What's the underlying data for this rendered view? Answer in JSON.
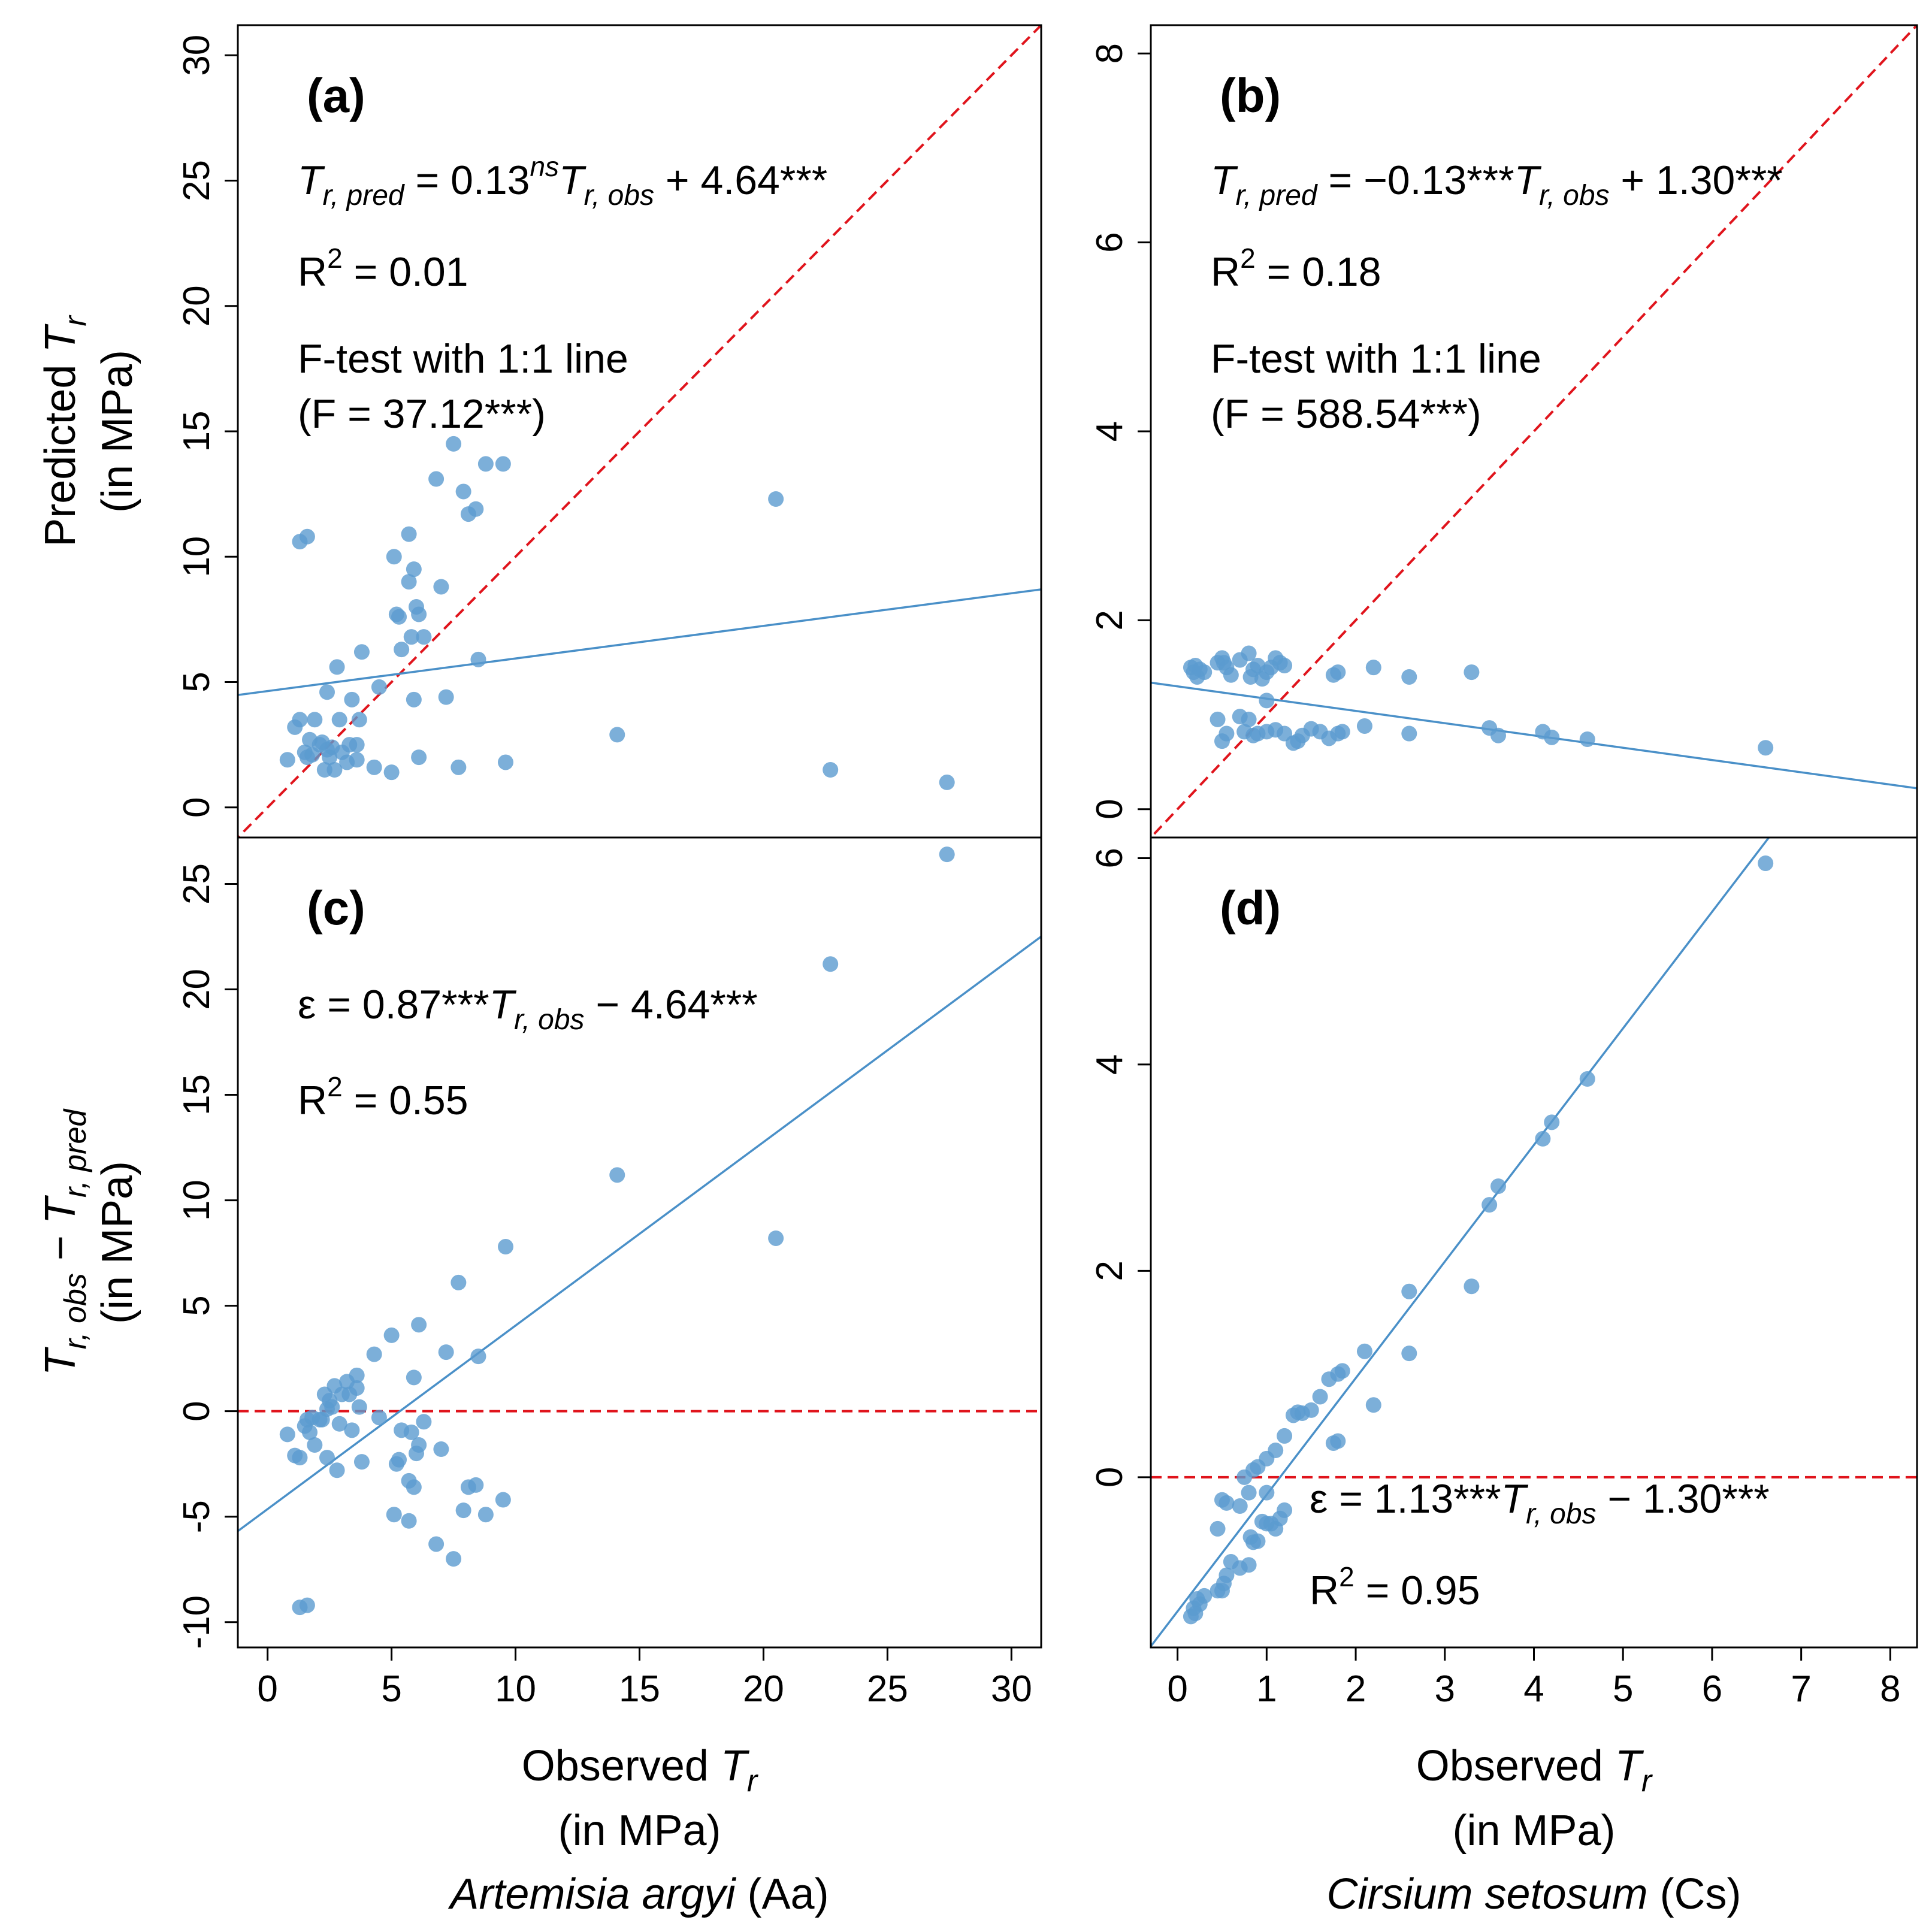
{
  "chart_data": [
    {
      "id": "a",
      "type": "scatter",
      "panel_label": "(a)",
      "xlim": [
        -1.2,
        31.2
      ],
      "ylim": [
        -1.2,
        31.2
      ],
      "yticks": [
        0,
        5,
        10,
        15,
        20,
        25,
        30
      ],
      "xticks": [],
      "ylabel_line1": "Predicted T",
      "ylabel_sub": "r",
      "ylabel_line2": "(in MPa)",
      "equation": {
        "lhs": "T",
        "lhs_sub": "r, pred",
        "mid": " = 0.13",
        "sup": "ns",
        "var": "T",
        "var_sub": "r, obs",
        "rhs": " + 4.64***"
      },
      "r2_label": "R",
      "r2_sup": "2",
      "r2_value": " = 0.01",
      "ftest_line1": "F-test with 1:1 line",
      "ftest_line2": "(F = 37.12***)",
      "fit": {
        "slope": 0.13,
        "intercept": 4.64
      },
      "reference": {
        "kind": "one_to_one"
      },
      "x": [
        0.8,
        1.1,
        1.3,
        1.5,
        1.6,
        1.7,
        1.8,
        1.9,
        2.1,
        2.2,
        2.3,
        2.4,
        2.5,
        2.6,
        2.7,
        2.8,
        2.9,
        3.0,
        3.2,
        3.3,
        3.4,
        3.6,
        3.7,
        3.8,
        4.3,
        4.5,
        1.3,
        1.6,
        5.1,
        5.2,
        5.3,
        5.4,
        5.7,
        5.8,
        5.9,
        6.0,
        6.1,
        6.3,
        6.8,
        7.0,
        7.5,
        7.9,
        8.1,
        8.4,
        8.8,
        9.5,
        5.0,
        5.9,
        6.1,
        7.7,
        8.5,
        9.6,
        14.1,
        20.5,
        22.7,
        27.4,
        2.4,
        3.6,
        5.7,
        7.2
      ],
      "y": [
        1.9,
        3.2,
        3.5,
        2.2,
        2.0,
        2.7,
        2.1,
        3.5,
        2.5,
        2.6,
        1.5,
        4.6,
        2.0,
        2.4,
        1.5,
        5.6,
        3.5,
        2.2,
        1.8,
        2.5,
        4.3,
        2.5,
        3.5,
        6.2,
        1.6,
        4.8,
        10.6,
        10.8,
        10.0,
        7.7,
        7.6,
        6.3,
        9.0,
        6.8,
        9.5,
        8.0,
        7.7,
        6.8,
        13.1,
        8.8,
        14.5,
        12.6,
        11.7,
        11.9,
        13.7,
        13.7,
        1.4,
        4.3,
        2.0,
        1.6,
        5.9,
        1.8,
        2.9,
        12.3,
        1.5,
        1.0,
        2.3,
        1.9,
        10.9,
        4.4
      ]
    },
    {
      "id": "b",
      "type": "scatter",
      "panel_label": "(b)",
      "xlim": [
        -0.3,
        8.3
      ],
      "ylim": [
        -0.3,
        8.3
      ],
      "yticks": [
        0,
        2,
        4,
        6,
        8
      ],
      "xticks": [],
      "equation": {
        "lhs": "T",
        "lhs_sub": "r, pred",
        "mid": " = −0.13***",
        "sup": "",
        "var": "T",
        "var_sub": "r, obs",
        "rhs": " + 1.30***"
      },
      "r2_label": "R",
      "r2_sup": "2",
      "r2_value": " = 0.18",
      "ftest_line1": "F-test with 1:1 line",
      "ftest_line2": "(F = 588.54***)",
      "fit": {
        "slope": -0.13,
        "intercept": 1.3
      },
      "reference": {
        "kind": "one_to_one"
      },
      "x": [
        0.15,
        0.18,
        0.2,
        0.22,
        0.25,
        0.3,
        0.45,
        0.5,
        0.52,
        0.55,
        0.6,
        0.7,
        0.8,
        0.82,
        0.85,
        0.9,
        0.95,
        1.0,
        1.05,
        1.1,
        1.15,
        1.2,
        1.75,
        1.8,
        2.2,
        2.6,
        3.3,
        0.45,
        0.5,
        0.55,
        0.7,
        0.75,
        0.85,
        0.9,
        1.0,
        1.1,
        1.2,
        1.3,
        1.35,
        1.4,
        1.5,
        1.6,
        1.7,
        1.8,
        1.85,
        2.1,
        2.6,
        3.5,
        3.6,
        4.1,
        4.2,
        4.6,
        6.6,
        1.0,
        0.8
      ],
      "y": [
        1.5,
        1.45,
        1.52,
        1.4,
        1.48,
        1.45,
        1.55,
        1.6,
        1.55,
        1.5,
        1.42,
        1.58,
        1.65,
        1.4,
        1.48,
        1.52,
        1.38,
        1.45,
        1.5,
        1.6,
        1.55,
        1.52,
        1.42,
        1.45,
        1.5,
        1.4,
        1.45,
        0.95,
        0.72,
        0.8,
        0.98,
        0.82,
        0.78,
        0.8,
        0.82,
        0.84,
        0.8,
        0.7,
        0.72,
        0.78,
        0.85,
        0.82,
        0.75,
        0.8,
        0.82,
        0.88,
        0.8,
        0.86,
        0.78,
        0.82,
        0.76,
        0.74,
        0.65,
        1.15,
        0.95
      ]
    },
    {
      "id": "c",
      "type": "scatter",
      "panel_label": "(c)",
      "xlim": [
        -1.2,
        31.2
      ],
      "ylim": [
        -11.2,
        27.2
      ],
      "yticks": [
        -10,
        -5,
        0,
        5,
        10,
        15,
        20,
        25
      ],
      "xticks": [
        0,
        5,
        10,
        15,
        20,
        25,
        30
      ],
      "ylabel_line1": "T",
      "ylabel_sub1": "r, obs",
      "ylabel_mid": " − T",
      "ylabel_sub2": "r, pred",
      "ylabel_line2": "(in MPa)",
      "xlabel_line1": "Observed T",
      "xlabel_sub": "r",
      "xlabel_line2": "(in MPa)",
      "species_italic": "Artemisia argyi",
      "species_code": " (Aa)",
      "equation": {
        "lhs": "ε",
        "mid": " = 0.87***",
        "var": "T",
        "var_sub": "r, obs",
        "rhs": " − 4.64***"
      },
      "r2_label": "R",
      "r2_sup": "2",
      "r2_value": " = 0.55",
      "fit": {
        "slope": 0.87,
        "intercept": -4.64
      },
      "reference": {
        "kind": "zero"
      },
      "x": [
        0.8,
        1.1,
        1.3,
        1.5,
        1.6,
        1.7,
        1.8,
        1.9,
        2.1,
        2.2,
        2.3,
        2.4,
        2.5,
        2.6,
        2.7,
        2.8,
        2.9,
        3.0,
        3.2,
        3.3,
        3.4,
        3.6,
        3.7,
        3.8,
        4.3,
        4.5,
        1.3,
        1.6,
        5.1,
        5.2,
        5.3,
        5.4,
        5.7,
        5.8,
        5.9,
        6.0,
        6.1,
        6.3,
        6.8,
        7.0,
        7.5,
        7.9,
        8.1,
        8.4,
        8.8,
        9.5,
        5.0,
        5.9,
        6.1,
        7.7,
        8.5,
        9.6,
        14.1,
        20.5,
        22.7,
        27.4,
        2.4,
        3.6,
        5.7,
        7.2
      ],
      "y": [
        -1.1,
        -2.1,
        -2.2,
        -0.7,
        -0.4,
        -1.0,
        -0.3,
        -1.6,
        -0.4,
        -0.4,
        0.8,
        -2.2,
        0.5,
        0.2,
        1.2,
        -2.8,
        -0.6,
        0.8,
        1.4,
        0.8,
        -0.9,
        1.1,
        0.2,
        -2.4,
        2.7,
        -0.3,
        -9.3,
        -9.2,
        -4.9,
        -2.5,
        -2.3,
        -0.9,
        -3.3,
        -1.0,
        -3.6,
        -2.0,
        -1.6,
        -0.5,
        -6.3,
        -1.8,
        -7.0,
        -4.7,
        -3.6,
        -3.5,
        -4.9,
        -4.2,
        3.6,
        1.6,
        4.1,
        6.1,
        2.6,
        7.8,
        11.2,
        8.2,
        21.2,
        26.4,
        0.1,
        1.7,
        -5.2,
        2.8
      ]
    },
    {
      "id": "d",
      "type": "scatter",
      "panel_label": "(d)",
      "xlim": [
        -0.3,
        8.3
      ],
      "ylim": [
        -1.65,
        6.2
      ],
      "yticks": [
        0,
        2,
        4,
        6
      ],
      "xticks": [
        0,
        1,
        2,
        3,
        4,
        5,
        6,
        7,
        8
      ],
      "xlabel_line1": "Observed T",
      "xlabel_sub": "r",
      "xlabel_line2": "(in MPa)",
      "species_italic": "Cirsium setosum",
      "species_code": " (Cs)",
      "equation": {
        "lhs": "ε",
        "mid": " = 1.13***",
        "var": "T",
        "var_sub": "r, obs",
        "rhs": " − 1.30***"
      },
      "r2_label": "R",
      "r2_sup": "2",
      "r2_value": " = 0.95",
      "fit": {
        "slope": 1.13,
        "intercept": -1.3
      },
      "reference": {
        "kind": "zero"
      },
      "x": [
        0.15,
        0.18,
        0.2,
        0.22,
        0.25,
        0.3,
        0.45,
        0.5,
        0.52,
        0.55,
        0.6,
        0.7,
        0.8,
        0.82,
        0.85,
        0.9,
        0.95,
        1.0,
        1.05,
        1.1,
        1.15,
        1.2,
        1.75,
        1.8,
        2.2,
        2.6,
        3.3,
        0.45,
        0.5,
        0.55,
        0.7,
        0.75,
        0.85,
        0.9,
        1.0,
        1.1,
        1.2,
        1.3,
        1.35,
        1.4,
        1.5,
        1.6,
        1.7,
        1.8,
        1.85,
        2.1,
        2.6,
        3.5,
        3.6,
        4.1,
        4.2,
        4.6,
        6.6,
        1.0,
        0.8
      ],
      "y": [
        -1.35,
        -1.27,
        -1.32,
        -1.18,
        -1.23,
        -1.15,
        -1.1,
        -1.1,
        -1.03,
        -0.95,
        -0.82,
        -0.88,
        -0.85,
        -0.58,
        -0.63,
        -0.62,
        -0.43,
        -0.45,
        -0.45,
        -0.5,
        -0.4,
        -0.32,
        0.33,
        0.35,
        0.7,
        1.2,
        1.85,
        -0.5,
        -0.22,
        -0.25,
        -0.28,
        0.0,
        0.07,
        0.1,
        0.18,
        0.26,
        0.4,
        0.6,
        0.63,
        0.62,
        0.65,
        0.78,
        0.95,
        1.0,
        1.03,
        1.22,
        1.8,
        2.64,
        2.82,
        3.28,
        3.44,
        3.86,
        5.95,
        -0.15,
        -0.15
      ]
    }
  ]
}
